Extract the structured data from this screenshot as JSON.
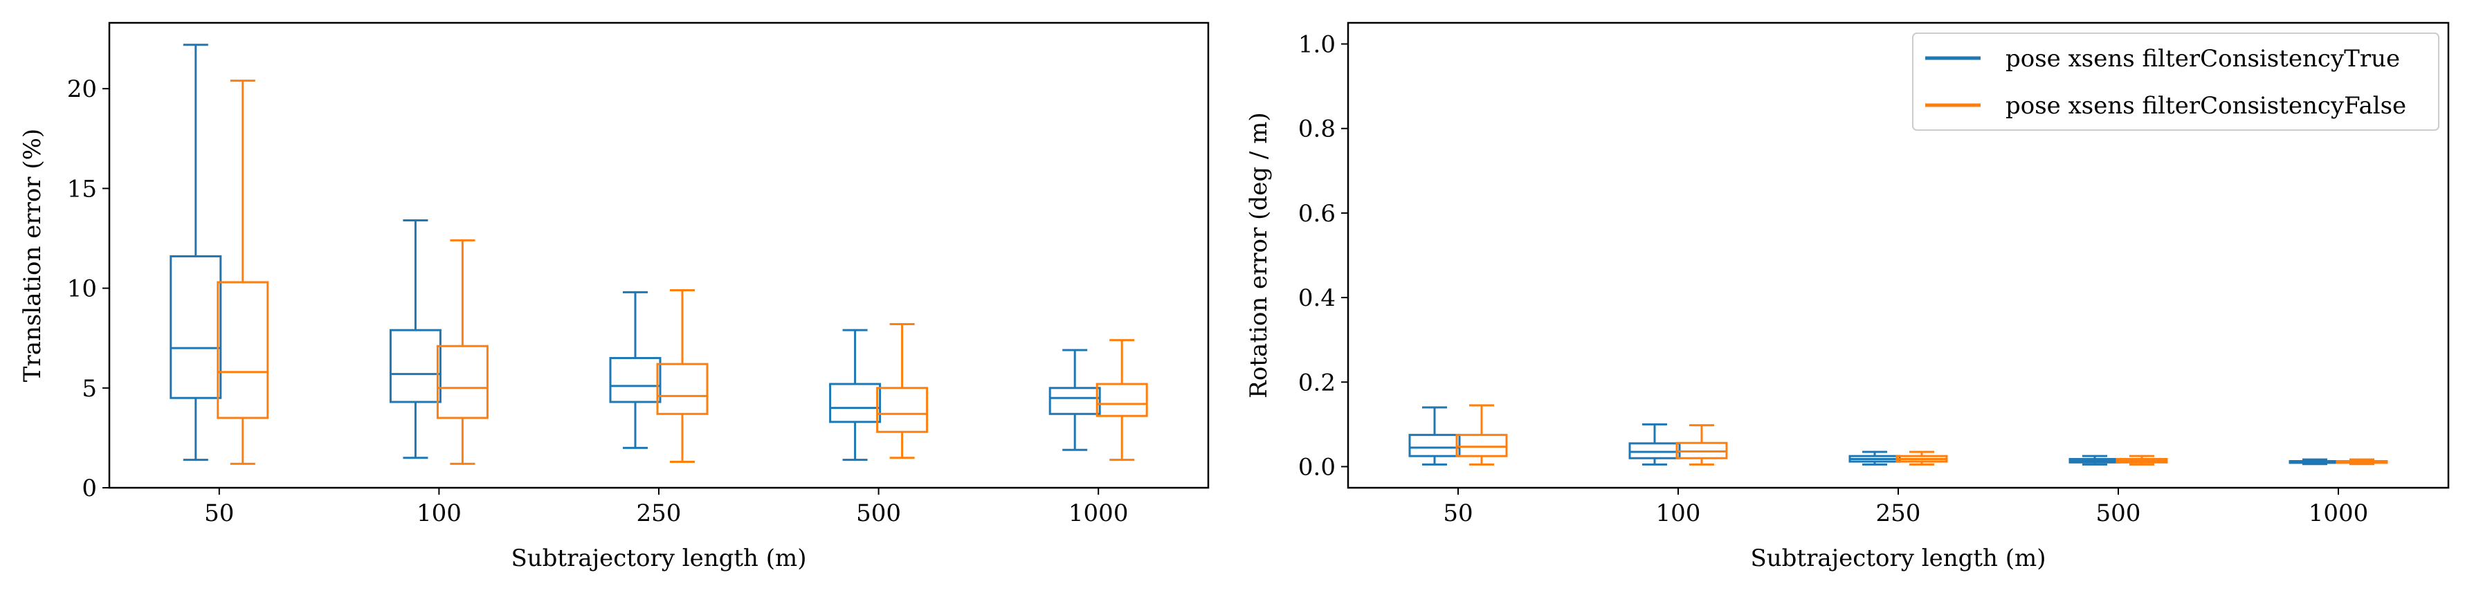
{
  "colors": {
    "series_true": "#1f77b4",
    "series_false": "#ff7f0e"
  },
  "chart_data": [
    {
      "type": "box",
      "xlabel": "Subtrajectory length (m)",
      "ylabel": "Translation error (%)",
      "categories": [
        "50",
        "100",
        "250",
        "500",
        "1000"
      ],
      "ylim": [
        0,
        23.3
      ],
      "yticks": [
        0,
        5,
        10,
        15,
        20
      ],
      "ytick_labels": [
        "0",
        "5",
        "10",
        "15",
        "20"
      ],
      "grid": false,
      "legend": "none",
      "series": [
        {
          "color_key": "series_true",
          "boxes": [
            {
              "whislo": 1.4,
              "q1": 4.5,
              "med": 7.0,
              "q3": 11.6,
              "whishi": 22.2
            },
            {
              "whislo": 1.5,
              "q1": 4.3,
              "med": 5.7,
              "q3": 7.9,
              "whishi": 13.4
            },
            {
              "whislo": 2.0,
              "q1": 4.3,
              "med": 5.1,
              "q3": 6.5,
              "whishi": 9.8
            },
            {
              "whislo": 1.4,
              "q1": 3.3,
              "med": 4.0,
              "q3": 5.2,
              "whishi": 7.9
            },
            {
              "whislo": 1.9,
              "q1": 3.7,
              "med": 4.5,
              "q3": 5.0,
              "whishi": 6.9
            }
          ]
        },
        {
          "color_key": "series_false",
          "boxes": [
            {
              "whislo": 1.2,
              "q1": 3.5,
              "med": 5.8,
              "q3": 10.3,
              "whishi": 20.4
            },
            {
              "whislo": 1.2,
              "q1": 3.5,
              "med": 5.0,
              "q3": 7.1,
              "whishi": 12.4
            },
            {
              "whislo": 1.3,
              "q1": 3.7,
              "med": 4.6,
              "q3": 6.2,
              "whishi": 9.9
            },
            {
              "whislo": 1.5,
              "q1": 2.8,
              "med": 3.7,
              "q3": 5.0,
              "whishi": 8.2
            },
            {
              "whislo": 1.4,
              "q1": 3.6,
              "med": 4.2,
              "q3": 5.2,
              "whishi": 7.4
            }
          ]
        }
      ]
    },
    {
      "type": "box",
      "xlabel": "Subtrajectory length (m)",
      "ylabel": "Rotation error (deg / m)",
      "categories": [
        "50",
        "100",
        "250",
        "500",
        "1000"
      ],
      "ylim": [
        -0.05,
        1.05
      ],
      "yticks": [
        0.0,
        0.2,
        0.4,
        0.6,
        0.8,
        1.0
      ],
      "ytick_labels": [
        "0.0",
        "0.2",
        "0.4",
        "0.6",
        "0.8",
        "1.0"
      ],
      "grid": false,
      "legend": "top-right",
      "series": [
        {
          "name": "pose xsens filterConsistencyTrue",
          "color_key": "series_true",
          "boxes": [
            {
              "whislo": 0.005,
              "q1": 0.025,
              "med": 0.045,
              "q3": 0.075,
              "whishi": 0.14
            },
            {
              "whislo": 0.005,
              "q1": 0.02,
              "med": 0.035,
              "q3": 0.055,
              "whishi": 0.1
            },
            {
              "whislo": 0.005,
              "q1": 0.012,
              "med": 0.018,
              "q3": 0.025,
              "whishi": 0.035
            },
            {
              "whislo": 0.005,
              "q1": 0.01,
              "med": 0.013,
              "q3": 0.018,
              "whishi": 0.025
            },
            {
              "whislo": 0.006,
              "q1": 0.009,
              "med": 0.011,
              "q3": 0.013,
              "whishi": 0.017
            }
          ]
        },
        {
          "name": "pose xsens filterConsistencyFalse",
          "color_key": "series_false",
          "boxes": [
            {
              "whislo": 0.005,
              "q1": 0.025,
              "med": 0.047,
              "q3": 0.075,
              "whishi": 0.145
            },
            {
              "whislo": 0.005,
              "q1": 0.02,
              "med": 0.036,
              "q3": 0.056,
              "whishi": 0.098
            },
            {
              "whislo": 0.005,
              "q1": 0.012,
              "med": 0.018,
              "q3": 0.025,
              "whishi": 0.035
            },
            {
              "whislo": 0.005,
              "q1": 0.01,
              "med": 0.013,
              "q3": 0.018,
              "whishi": 0.025
            },
            {
              "whislo": 0.006,
              "q1": 0.009,
              "med": 0.011,
              "q3": 0.013,
              "whishi": 0.017
            }
          ]
        }
      ]
    }
  ]
}
